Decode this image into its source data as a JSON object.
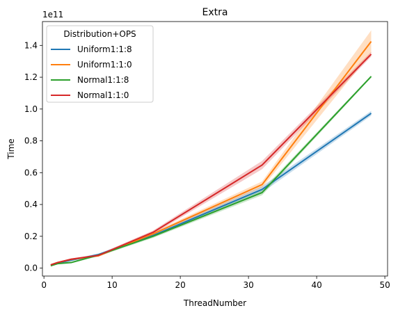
{
  "chart_data": {
    "type": "line",
    "title": "Extra",
    "xlabel": "ThreadNumber",
    "ylabel": "Time",
    "y_scale_label": "1e11",
    "xlim": [
      0,
      50
    ],
    "ylim": [
      -0.05,
      1.55
    ],
    "x_ticks": [
      0,
      10,
      20,
      30,
      40,
      50
    ],
    "y_ticks": [
      0.0,
      0.2,
      0.4,
      0.6,
      0.8,
      1.0,
      1.2,
      1.4
    ],
    "grid": false,
    "legend": {
      "title": "Distribution+OPS",
      "placement": "top-left"
    },
    "series": [
      {
        "name": "Uniform1:1:8",
        "color": "#1f77b4",
        "x": [
          1,
          2,
          4,
          8,
          16,
          32,
          48
        ],
        "y": [
          0.018,
          0.032,
          0.05,
          0.085,
          0.205,
          0.495,
          0.973
        ],
        "band_low": [
          0.012,
          0.027,
          0.045,
          0.078,
          0.195,
          0.475,
          0.958
        ],
        "band_high": [
          0.024,
          0.037,
          0.055,
          0.092,
          0.215,
          0.515,
          0.988
        ]
      },
      {
        "name": "Uniform1:1:0",
        "color": "#ff7f0e",
        "x": [
          1,
          2,
          4,
          8,
          16,
          32,
          48
        ],
        "y": [
          0.02,
          0.035,
          0.055,
          0.078,
          0.215,
          0.525,
          1.425
        ],
        "band_low": [
          0.014,
          0.03,
          0.05,
          0.071,
          0.205,
          0.505,
          1.355
        ],
        "band_high": [
          0.026,
          0.04,
          0.06,
          0.085,
          0.225,
          0.545,
          1.495
        ]
      },
      {
        "name": "Normal1:1:8",
        "color": "#2ca02c",
        "x": [
          1,
          2,
          4,
          8,
          16,
          32,
          48
        ],
        "y": [
          0.015,
          0.028,
          0.035,
          0.082,
          0.2,
          0.475,
          1.205
        ],
        "band_low": [
          0.009,
          0.023,
          0.03,
          0.075,
          0.19,
          0.458,
          1.198
        ],
        "band_high": [
          0.021,
          0.033,
          0.04,
          0.089,
          0.21,
          0.492,
          1.212
        ]
      },
      {
        "name": "Normal1:1:0",
        "color": "#d62728",
        "x": [
          1,
          2,
          4,
          8,
          16,
          32,
          48
        ],
        "y": [
          0.02,
          0.035,
          0.056,
          0.08,
          0.225,
          0.648,
          1.345
        ],
        "band_low": [
          0.014,
          0.03,
          0.051,
          0.073,
          0.214,
          0.622,
          1.33
        ],
        "band_high": [
          0.026,
          0.04,
          0.061,
          0.087,
          0.236,
          0.674,
          1.36
        ]
      }
    ]
  }
}
